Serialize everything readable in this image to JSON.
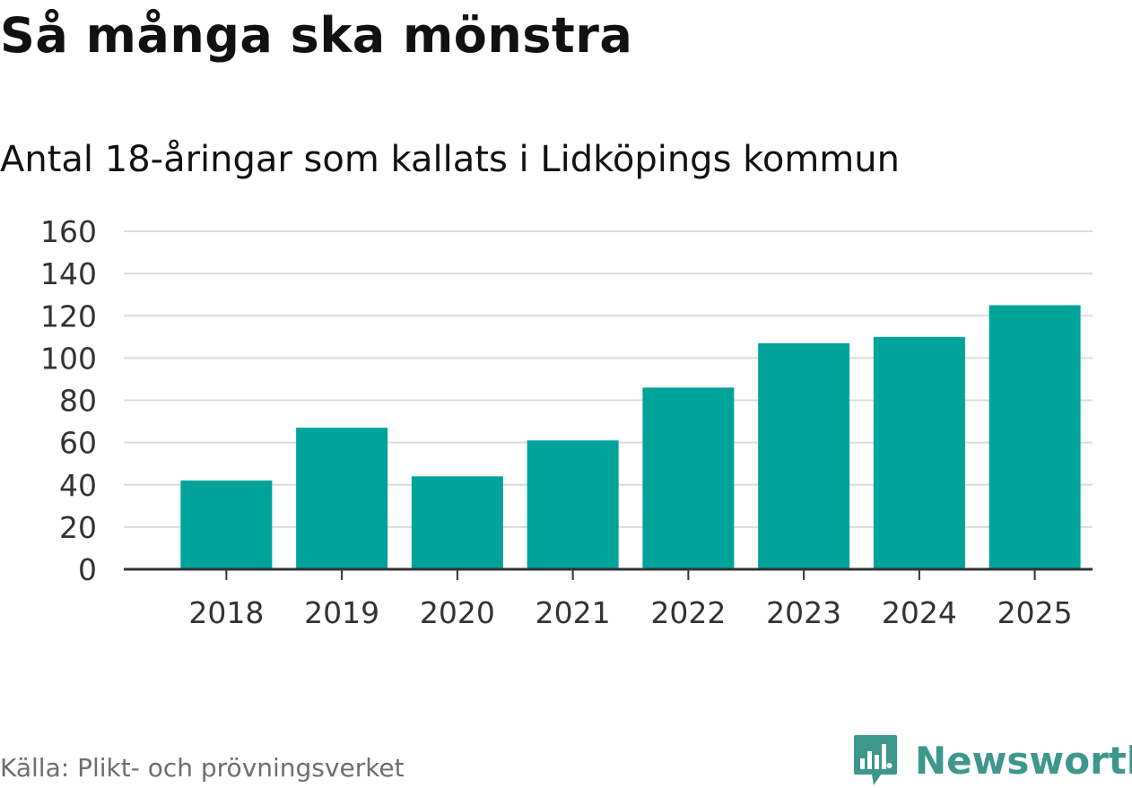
{
  "title": "Så många ska mönstra",
  "subtitle": "Antal 18-åringar som kallats i Lidköpings kommun",
  "source": "Källa: Plikt- och prövningsverket",
  "brand": {
    "name": "Newsworthy",
    "icon": "newsworthy-chart-bubble-icon",
    "color": "#3d978d"
  },
  "colors": {
    "bar": "#00a39a",
    "grid": "#dcdcdc",
    "axis": "#333333",
    "tick_text": "#333333"
  },
  "chart_data": {
    "type": "bar",
    "title": "Så många ska mönstra",
    "subtitle": "Antal 18-åringar som kallats i Lidköpings kommun",
    "xlabel": "",
    "ylabel": "",
    "categories": [
      "2018",
      "2019",
      "2020",
      "2021",
      "2022",
      "2023",
      "2024",
      "2025"
    ],
    "values": [
      42,
      67,
      44,
      61,
      86,
      107,
      110,
      125
    ],
    "ylim": [
      0,
      160
    ],
    "yticks": [
      "0",
      "20",
      "40",
      "60",
      "80",
      "100",
      "120",
      "140",
      "160"
    ],
    "grid": true,
    "legend": "none"
  }
}
